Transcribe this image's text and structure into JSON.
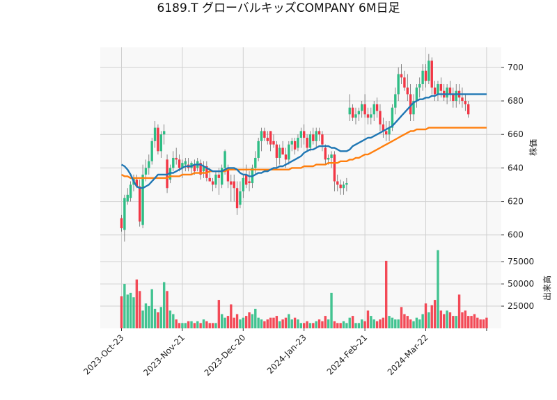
{
  "title": "6189.T グローバルキッズCOMPANY 6M日足",
  "chart_data": [
    {
      "type": "candlestick",
      "panel": "price",
      "ylabel": "株価",
      "ylim": [
        592,
        712
      ],
      "yticks": [
        600,
        620,
        640,
        660,
        680,
        700
      ],
      "grid": true,
      "colors": {
        "up": "#2ebd85",
        "down": "#f23645",
        "ma_short": "#1f77b4",
        "ma_long": "#ff7f0e"
      },
      "x_tick_labels": [
        "2023-Oct-23",
        "2023-Nov-21",
        "2023-Dec-20",
        "2024-Jan-23",
        "2024-Feb-21",
        "2024-Mar-22"
      ],
      "x_tick_bar_index": [
        0,
        20,
        40,
        60,
        80,
        100
      ],
      "x_end_bar_index": 120,
      "ohlc": [
        [
          610,
          612,
          602,
          604
        ],
        [
          603,
          624,
          596,
          622
        ],
        [
          620,
          628,
          618,
          624
        ],
        [
          622,
          632,
          620,
          630
        ],
        [
          630,
          636,
          626,
          634
        ],
        [
          633,
          636,
          628,
          629
        ],
        [
          629,
          633,
          605,
          608
        ],
        [
          606,
          642,
          604,
          636
        ],
        [
          636,
          645,
          632,
          640
        ],
        [
          640,
          648,
          636,
          644
        ],
        [
          644,
          658,
          642,
          656
        ],
        [
          656,
          668,
          652,
          664
        ],
        [
          664,
          666,
          648,
          650
        ],
        [
          650,
          662,
          646,
          660
        ],
        [
          660,
          666,
          654,
          662
        ],
        [
          645,
          648,
          625,
          628
        ],
        [
          633,
          642,
          631,
          640
        ],
        [
          640,
          650,
          638,
          646
        ],
        [
          646,
          652,
          642,
          645
        ],
        [
          645,
          648,
          638,
          640
        ],
        [
          640,
          645,
          634,
          643
        ],
        [
          642,
          646,
          638,
          644
        ],
        [
          642,
          646,
          638,
          640
        ],
        [
          640,
          644,
          636,
          643
        ],
        [
          642,
          645,
          636,
          638
        ],
        [
          640,
          646,
          638,
          644
        ],
        [
          643,
          645,
          633,
          636
        ],
        [
          638,
          644,
          634,
          641
        ],
        [
          641,
          644,
          632,
          634
        ],
        [
          634,
          640,
          632,
          632
        ],
        [
          632,
          634,
          626,
          630
        ],
        [
          630,
          638,
          628,
          636
        ],
        [
          636,
          640,
          624,
          634
        ],
        [
          630,
          642,
          628,
          640
        ],
        [
          640,
          651,
          636,
          650
        ],
        [
          640,
          642,
          628,
          632
        ],
        [
          632,
          636,
          620,
          630
        ],
        [
          632,
          636,
          620,
          628
        ],
        [
          628,
          632,
          612,
          616
        ],
        [
          618,
          632,
          616,
          626
        ],
        [
          626,
          636,
          622,
          634
        ],
        [
          636,
          642,
          628,
          630
        ],
        [
          632,
          638,
          626,
          631
        ],
        [
          631,
          642,
          628,
          640
        ],
        [
          640,
          650,
          636,
          646
        ],
        [
          646,
          658,
          644,
          656
        ],
        [
          656,
          664,
          650,
          662
        ],
        [
          662,
          664,
          656,
          658
        ],
        [
          658,
          662,
          654,
          656
        ],
        [
          662,
          662,
          650,
          654
        ],
        [
          656,
          660,
          652,
          654
        ],
        [
          654,
          656,
          640,
          646
        ],
        [
          646,
          654,
          642,
          652
        ],
        [
          652,
          656,
          648,
          648
        ],
        [
          648,
          652,
          640,
          645
        ],
        [
          645,
          656,
          642,
          654
        ],
        [
          654,
          658,
          650,
          656
        ],
        [
          656,
          658,
          648,
          651
        ],
        [
          652,
          660,
          650,
          658
        ],
        [
          658,
          664,
          652,
          662
        ],
        [
          662,
          666,
          654,
          658
        ],
        [
          658,
          660,
          650,
          652
        ],
        [
          652,
          662,
          650,
          660
        ],
        [
          660,
          664,
          654,
          656
        ],
        [
          656,
          664,
          652,
          662
        ],
        [
          662,
          664,
          656,
          660
        ],
        [
          660,
          662,
          650,
          654
        ],
        [
          652,
          654,
          642,
          645
        ],
        [
          645,
          648,
          642,
          646
        ],
        [
          646,
          650,
          640,
          648
        ],
        [
          648,
          650,
          626,
          632
        ],
        [
          632,
          636,
          626,
          630
        ],
        [
          630,
          633,
          624,
          628
        ],
        [
          628,
          632,
          624,
          630
        ],
        [
          630,
          634,
          626,
          631
        ],
        [
          672,
          684,
          668,
          676
        ],
        [
          676,
          678,
          668,
          670
        ],
        [
          670,
          676,
          666,
          672
        ],
        [
          672,
          676,
          668,
          674
        ],
        [
          674,
          680,
          670,
          678
        ],
        [
          678,
          684,
          670,
          672
        ],
        [
          672,
          676,
          666,
          670
        ],
        [
          670,
          676,
          666,
          672
        ],
        [
          672,
          680,
          668,
          678
        ],
        [
          678,
          682,
          670,
          674
        ],
        [
          674,
          678,
          662,
          666
        ],
        [
          666,
          670,
          658,
          662
        ],
        [
          662,
          668,
          656,
          660
        ],
        [
          660,
          668,
          656,
          664
        ],
        [
          664,
          678,
          662,
          676
        ],
        [
          676,
          688,
          672,
          684
        ],
        [
          684,
          700,
          680,
          696
        ],
        [
          696,
          702,
          690,
          694
        ],
        [
          694,
          698,
          686,
          688
        ],
        [
          688,
          696,
          680,
          684
        ],
        [
          684,
          690,
          668,
          672
        ],
        [
          672,
          684,
          668,
          680
        ],
        [
          680,
          690,
          676,
          688
        ],
        [
          688,
          694,
          682,
          690
        ],
        [
          690,
          702,
          686,
          698
        ],
        [
          698,
          702,
          688,
          692
        ],
        [
          692,
          708,
          690,
          704
        ],
        [
          704,
          706,
          684,
          688
        ],
        [
          688,
          692,
          680,
          684
        ],
        [
          684,
          692,
          680,
          690
        ],
        [
          690,
          694,
          682,
          686
        ],
        [
          686,
          690,
          680,
          682
        ],
        [
          682,
          690,
          678,
          688
        ],
        [
          688,
          692,
          680,
          684
        ],
        [
          684,
          688,
          676,
          680
        ],
        [
          680,
          690,
          676,
          686
        ],
        [
          686,
          690,
          678,
          682
        ],
        [
          682,
          688,
          676,
          680
        ],
        [
          680,
          684,
          674,
          678
        ],
        [
          678,
          680,
          670,
          672
        ]
      ],
      "ma_short": [
        642,
        641,
        639,
        636,
        632,
        629,
        628,
        628,
        629,
        630,
        632,
        634,
        636,
        636,
        636,
        636,
        637,
        637,
        638,
        639,
        640,
        641,
        641,
        641,
        642,
        642,
        642,
        641,
        640,
        639,
        638,
        638,
        638,
        638,
        639,
        640,
        640,
        640,
        639,
        637,
        636,
        636,
        635,
        635,
        636,
        637,
        637,
        638,
        638,
        639,
        640,
        640,
        641,
        641,
        642,
        643,
        644,
        645,
        646,
        647,
        649,
        650,
        651,
        651,
        652,
        653,
        653,
        653,
        653,
        652,
        652,
        651,
        650,
        650,
        650,
        651,
        653,
        654,
        655,
        656,
        657,
        658,
        658,
        659,
        660,
        661,
        662,
        663,
        664,
        665,
        667,
        669,
        671,
        673,
        675,
        677,
        679,
        680,
        681,
        681,
        682,
        682,
        683,
        683,
        684,
        684,
        684,
        684,
        684,
        684,
        684,
        684,
        684,
        684,
        684,
        684,
        684,
        684,
        684,
        684,
        684
      ],
      "ma_long": [
        636,
        635,
        635,
        634,
        634,
        634,
        634,
        634,
        634,
        634,
        634,
        634,
        634,
        634,
        634,
        634,
        635,
        635,
        635,
        635,
        636,
        636,
        636,
        636,
        637,
        637,
        637,
        637,
        637,
        638,
        638,
        638,
        638,
        638,
        638,
        639,
        639,
        639,
        639,
        639,
        639,
        639,
        639,
        639,
        639,
        639,
        639,
        639,
        639,
        639,
        639,
        639,
        639,
        639,
        639,
        639,
        640,
        640,
        640,
        640,
        641,
        641,
        641,
        641,
        642,
        642,
        642,
        642,
        643,
        643,
        643,
        643,
        644,
        644,
        644,
        645,
        645,
        646,
        646,
        647,
        648,
        648,
        649,
        650,
        651,
        652,
        653,
        654,
        655,
        656,
        657,
        658,
        659,
        660,
        661,
        662,
        662,
        663,
        663,
        663,
        663,
        664,
        664,
        664,
        664,
        664,
        664,
        664,
        664,
        664,
        664,
        664,
        664,
        664,
        664,
        664,
        664,
        664,
        664,
        664,
        664
      ]
    },
    {
      "type": "bar",
      "panel": "volume",
      "ylabel": "出来高",
      "ylim": [
        0,
        90000
      ],
      "yticks": [
        25000,
        50000,
        75000
      ],
      "grid": true,
      "values": [
        36000,
        50000,
        38000,
        40000,
        35000,
        55000,
        42000,
        20000,
        28000,
        25000,
        44000,
        22000,
        18000,
        24000,
        52000,
        42000,
        20000,
        16000,
        10000,
        6000,
        6000,
        6000,
        8000,
        8000,
        6000,
        8000,
        6000,
        10000,
        8000,
        6000,
        6000,
        6000,
        32000,
        16000,
        12000,
        14000,
        27000,
        12000,
        16000,
        10000,
        12000,
        14000,
        18000,
        16000,
        22000,
        12000,
        10000,
        8000,
        10000,
        12000,
        12000,
        14000,
        8000,
        10000,
        12000,
        16000,
        10000,
        12000,
        10000,
        6000,
        6000,
        8000,
        6000,
        6000,
        8000,
        10000,
        8000,
        14000,
        10000,
        40000,
        8000,
        6000,
        6000,
        8000,
        6000,
        12000,
        14000,
        6000,
        6000,
        10000,
        8000,
        20000,
        14000,
        10000,
        8000,
        10000,
        12000,
        76000,
        14000,
        12000,
        10000,
        10000,
        24000,
        16000,
        14000,
        10000,
        8000,
        12000,
        10000,
        16000,
        28000,
        18000,
        26000,
        32000,
        88000,
        20000,
        16000,
        20000,
        18000,
        14000,
        14000,
        38000,
        18000,
        20000,
        14000,
        14000,
        16000,
        12000,
        10000,
        10000,
        12000
      ]
    }
  ]
}
